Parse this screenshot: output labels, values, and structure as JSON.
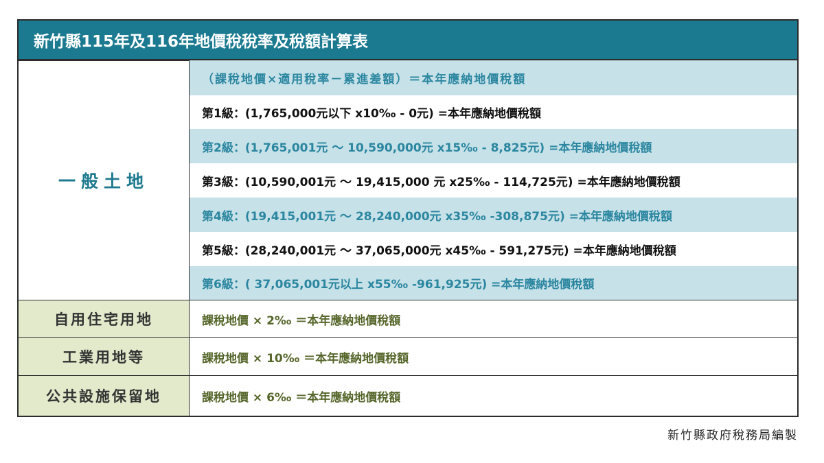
{
  "title": "新竹縣115年及116年地價稅稅率及稅額計算表",
  "table": {
    "general_land": {
      "label": "一般土地",
      "formula": "（課稅地價×適用稅率－累進差額）＝本年應納地價稅額",
      "levels": [
        "第1級：(1,765,000元以下 x10‰ - 0元) =本年應納地價稅額",
        "第2級：(1,765,001元 ～ 10,590,000元 x15‰ - 8,825元) =本年應納地價稅額",
        "第3級：(10,590,001元 ～ 19,415,000 元 x25‰ - 114,725元) =本年應納地價稅額",
        "第4級：(19,415,001元 ～ 28,240,000元 x35‰ -308,875元) =本年應納地價稅額",
        "第5級：(28,240,001元 ～ 37,065,000元 x45‰ - 591,275元) =本年應納地價稅額",
        "第6級：( 37,065,001元以上 x55‰ -961,925元) =本年應納地價稅額"
      ]
    },
    "rows": [
      {
        "label": "自用住宅用地",
        "formula": "課稅地價 × 2‰ ＝本年應納地價稅額"
      },
      {
        "label": "工業用地等",
        "formula": "課稅地價 × 10‰ ＝本年應納地價稅額"
      },
      {
        "label": "公共設施保留地",
        "formula": "課稅地價 × 6‰ ＝本年應納地價稅額"
      }
    ]
  },
  "footer": "新竹縣政府稅務局編製"
}
